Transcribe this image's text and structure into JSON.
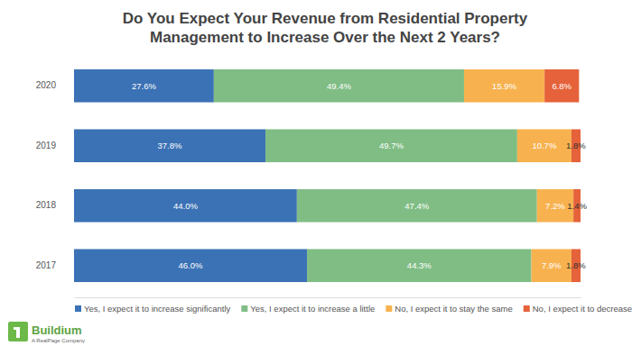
{
  "chart_data": {
    "type": "bar",
    "title": "Do You Expect Your Revenue from Residential Property Management to Increase Over the Next 2 Years?",
    "orientation": "horizontal",
    "stacked": true,
    "data_labels": true,
    "tick_labels": "y",
    "grid": false,
    "legend": "bottom-left",
    "categories": [
      "2020",
      "2019",
      "2018",
      "2017"
    ],
    "xlim": [
      0,
      100
    ],
    "xticks": [],
    "series": [
      {
        "name": "Yes, I expect it to increase significantly",
        "color": "#3b72b5",
        "values": [
          27.6,
          37.8,
          44.0,
          46.0
        ],
        "value_labels": [
          "27.6%",
          "37.8%",
          "44.0%",
          "46.0%"
        ]
      },
      {
        "name": "Yes, I expect it to increase a little",
        "color": "#80bd85",
        "values": [
          49.4,
          49.7,
          47.4,
          44.3
        ],
        "value_labels": [
          "49.4%",
          "49.7%",
          "47.4%",
          "44.3%"
        ]
      },
      {
        "name": "No, I expect it to stay the same",
        "color": "#f7b24f",
        "values": [
          15.9,
          10.7,
          7.2,
          7.9
        ],
        "value_labels": [
          "15.9%",
          "10.7%",
          "7.2%",
          "7.9%"
        ]
      },
      {
        "name": "No, I expect it to decrease",
        "color": "#e5623a",
        "values": [
          6.8,
          1.8,
          1.4,
          1.8
        ],
        "value_labels": [
          "6.8%",
          "1.8%",
          "1.4%",
          "1.8%"
        ]
      }
    ]
  },
  "logo": {
    "name": "Buildium",
    "tagline": "A RealPage Company"
  }
}
